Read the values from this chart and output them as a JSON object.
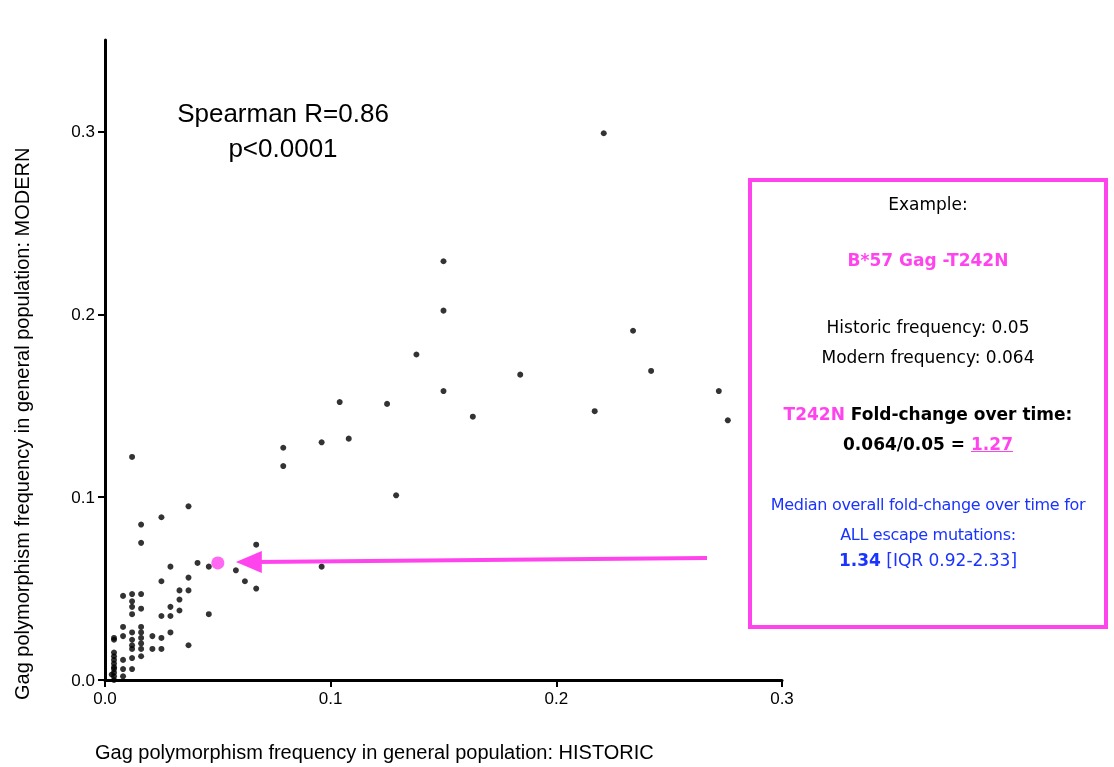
{
  "chart_data": {
    "type": "scatter",
    "xlabel": "Gag polymorphism frequency in general population: HISTORIC",
    "ylabel": "Gag polymorphism frequency in general population: MODERN",
    "xlim": [
      0,
      0.3
    ],
    "ylim": [
      0,
      0.35
    ],
    "xticks": [
      {
        "value": 0,
        "label": "0.0"
      },
      {
        "value": 0.1,
        "label": "0.1"
      },
      {
        "value": 0.2,
        "label": "0.2"
      },
      {
        "value": 0.3,
        "label": "0.3"
      }
    ],
    "yticks": [
      {
        "value": 0,
        "label": "0.0"
      },
      {
        "value": 0.1,
        "label": "0.1"
      },
      {
        "value": 0.2,
        "label": "0.2"
      },
      {
        "value": 0.3,
        "label": "0.3"
      }
    ],
    "grid": false,
    "marker": "circle",
    "series": [
      {
        "color": "#000000",
        "x": [
          0.221,
          0.15,
          0.15,
          0.234,
          0.138,
          0.242,
          0.184,
          0.272,
          0.15,
          0.276,
          0.104,
          0.125,
          0.163,
          0.217,
          0.108,
          0.096,
          0.079,
          0.079,
          0.129,
          0.096,
          0.012,
          0.037,
          0.025,
          0.016,
          0.016,
          0.067,
          0.041,
          0.046,
          0.029,
          0.058,
          0.025,
          0.037,
          0.062,
          0.067,
          0.037,
          0.033,
          0.008,
          0.012,
          0.012,
          0.012,
          0.012,
          0.016,
          0.016,
          0.033,
          0.029,
          0.033,
          0.025,
          0.029,
          0.046,
          0.008,
          0.016,
          0.012,
          0.008,
          0.016,
          0.029,
          0.021,
          0.016,
          0.025,
          0.004,
          0.004,
          0.012,
          0.016,
          0.012,
          0.025,
          0.037,
          0.021,
          0.016,
          0.012,
          0.016,
          0.012,
          0.012,
          0.008,
          0.008,
          0.008,
          0.004,
          0.004,
          0.004,
          0.004,
          0.004,
          0.004,
          0.004,
          0.004,
          0.004,
          0.003
        ],
        "values": [
          0.299,
          0.229,
          0.202,
          0.191,
          0.178,
          0.169,
          0.167,
          0.158,
          0.158,
          0.142,
          0.152,
          0.151,
          0.144,
          0.147,
          0.132,
          0.13,
          0.127,
          0.117,
          0.101,
          0.062,
          0.122,
          0.095,
          0.089,
          0.085,
          0.075,
          0.074,
          0.064,
          0.062,
          0.062,
          0.06,
          0.054,
          0.056,
          0.054,
          0.05,
          0.049,
          0.049,
          0.046,
          0.047,
          0.043,
          0.04,
          0.036,
          0.047,
          0.039,
          0.044,
          0.04,
          0.038,
          0.035,
          0.035,
          0.036,
          0.029,
          0.029,
          0.026,
          0.024,
          0.026,
          0.026,
          0.024,
          0.023,
          0.023,
          0.023,
          0.022,
          0.022,
          0.02,
          0.019,
          0.017,
          0.019,
          0.017,
          0.017,
          0.017,
          0.013,
          0.012,
          0.006,
          0.011,
          0.006,
          0.002,
          0.015,
          0.013,
          0.011,
          0.009,
          0.007,
          0.006,
          0.004,
          0.002,
          0.0,
          0.003
        ]
      },
      {
        "color": "#ff44ee",
        "x": [
          0.05
        ],
        "values": [
          0.064
        ]
      }
    ],
    "annotations": [
      "Spearman R=0.86",
      "p<0.0001",
      "Example:",
      "B*57 Gag -T242N",
      "Historic frequency: 0.05",
      "Modern frequency: 0.064",
      "T242N",
      "Fold-change over time:",
      "0.064/0.05 =",
      "1.27",
      "Median overall fold-change over time for ALL escape mutations:",
      "1.34",
      "[IQR 0.92-2.33]"
    ]
  }
}
